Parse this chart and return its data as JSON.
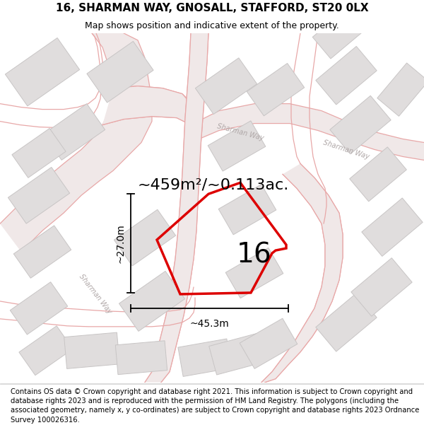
{
  "title": "16, SHARMAN WAY, GNOSALL, STAFFORD, ST20 0LX",
  "subtitle": "Map shows position and indicative extent of the property.",
  "footer": "Contains OS data © Crown copyright and database right 2021. This information is subject to Crown copyright and database rights 2023 and is reproduced with the permission of HM Land Registry. The polygons (including the associated geometry, namely x, y co-ordinates) are subject to Crown copyright and database rights 2023 Ordnance Survey 100026316.",
  "area_label": "~459m²/~0.113ac.",
  "width_label": "~45.3m",
  "height_label": "~27.0m",
  "plot_number": "16",
  "map_bg": "#f7f6f6",
  "road_color": "#e8a8a8",
  "road_fill": "#f0e8e8",
  "building_color": "#e0dddd",
  "building_edge": "#c8c5c5",
  "plot_color": "#dd0000",
  "title_fontsize": 11,
  "subtitle_fontsize": 9,
  "footer_fontsize": 7.2,
  "area_fontsize": 16,
  "plot_num_fontsize": 28,
  "dim_fontsize": 10
}
